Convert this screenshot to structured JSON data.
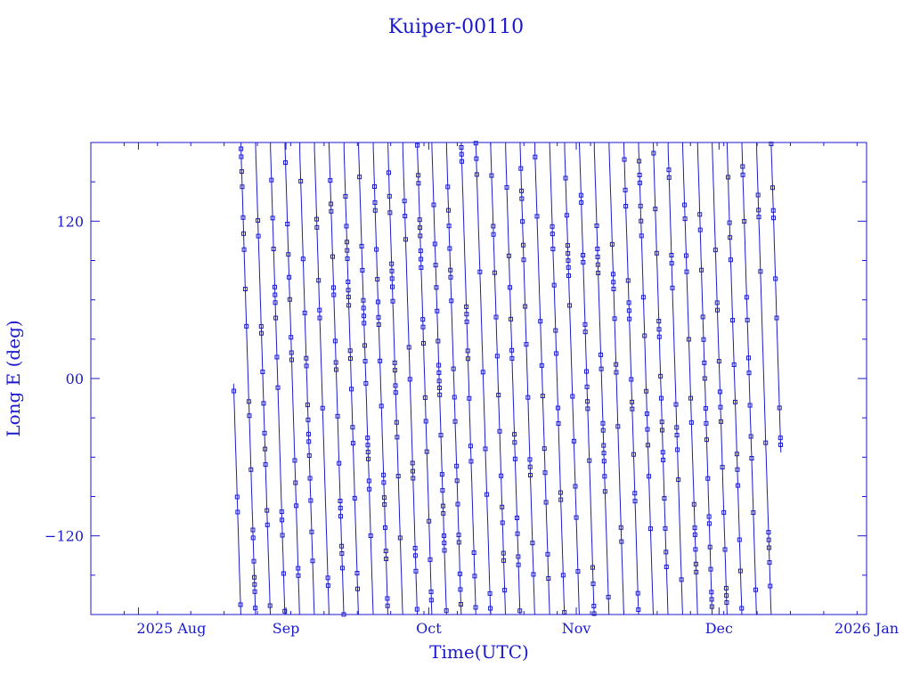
{
  "chart_data": {
    "type": "line",
    "title": "Kuiper-00110",
    "xlabel": "Time(UTC)",
    "ylabel": "Long E (deg)",
    "x_ticks": [
      "2025 Aug",
      "Sep",
      "Oct",
      "Nov",
      "Dec",
      "2026 Jan"
    ],
    "x_tick_dates": [
      "2025-08-01",
      "2025-09-01",
      "2025-10-01",
      "2025-11-01",
      "2025-12-01",
      "2026-01-01"
    ],
    "xlim": [
      "2025-07-22",
      "2026-01-01"
    ],
    "y_ticks": [
      "−120",
      "00",
      "120"
    ],
    "y_tick_values": [
      -120,
      0,
      120
    ],
    "ylim": [
      -180,
      180
    ],
    "data_start": "2025-08-21",
    "data_end": "2025-12-14",
    "wrap_period_days": 3.1,
    "marker": "square",
    "grid": false,
    "colors": {
      "line": "#1a1acc",
      "background": "#ffffff"
    }
  }
}
